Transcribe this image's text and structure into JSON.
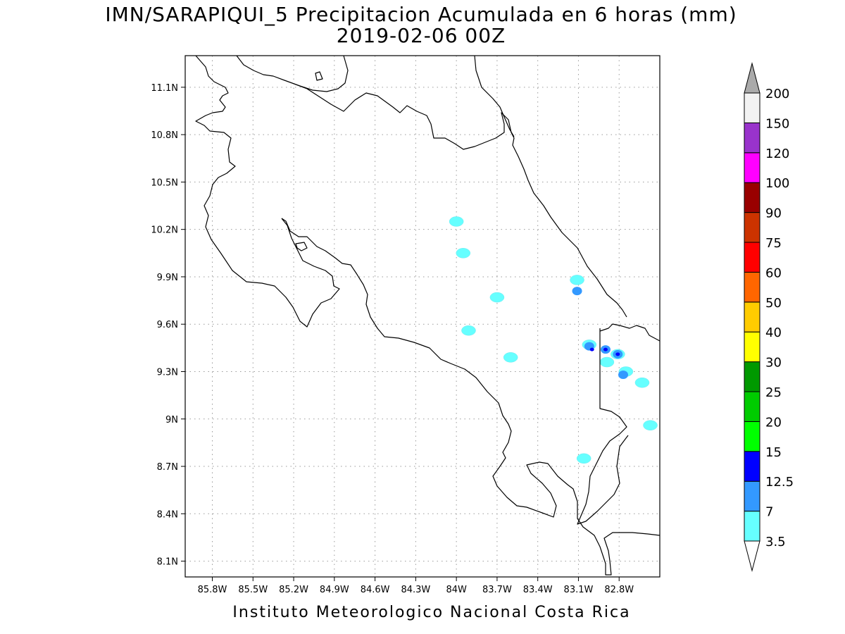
{
  "title": {
    "line1": "IMN/SARAPIQUI_5 Precipitacion Acumulada en 6 horas (mm)",
    "line2": "2019-02-06 00Z"
  },
  "footer": "Instituto Meteorologico Nacional Costa Rica",
  "map": {
    "lon_range": [
      -86.0,
      -82.5
    ],
    "lat_range": [
      8.0,
      11.3
    ],
    "lon_ticks": [
      {
        "value": -85.8,
        "label": "85.8W"
      },
      {
        "value": -85.5,
        "label": "85.5W"
      },
      {
        "value": -85.2,
        "label": "85.2W"
      },
      {
        "value": -84.9,
        "label": "84.9W"
      },
      {
        "value": -84.6,
        "label": "84.6W"
      },
      {
        "value": -84.3,
        "label": "84.3W"
      },
      {
        "value": -84.0,
        "label": "84W"
      },
      {
        "value": -83.7,
        "label": "83.7W"
      },
      {
        "value": -83.4,
        "label": "83.4W"
      },
      {
        "value": -83.1,
        "label": "83.1W"
      },
      {
        "value": -82.8,
        "label": "82.8W"
      }
    ],
    "lat_ticks": [
      {
        "value": 11.1,
        "label": "11.1N"
      },
      {
        "value": 10.8,
        "label": "10.8N"
      },
      {
        "value": 10.5,
        "label": "10.5N"
      },
      {
        "value": 10.2,
        "label": "10.2N"
      },
      {
        "value": 9.9,
        "label": "9.9N"
      },
      {
        "value": 9.6,
        "label": "9.6N"
      },
      {
        "value": 9.3,
        "label": "9.3N"
      },
      {
        "value": 9.0,
        "label": "9N"
      },
      {
        "value": 8.7,
        "label": "8.7N"
      },
      {
        "value": 8.4,
        "label": "8.4N"
      },
      {
        "value": 8.1,
        "label": "8.1N"
      }
    ],
    "grid": true
  },
  "precip_cells": [
    {
      "lon": -84.0,
      "lat": 10.25,
      "level": 3.5
    },
    {
      "lon": -83.95,
      "lat": 10.05,
      "level": 3.5
    },
    {
      "lon": -83.7,
      "lat": 9.77,
      "level": 3.5
    },
    {
      "lon": -83.91,
      "lat": 9.56,
      "level": 3.5
    },
    {
      "lon": -83.11,
      "lat": 9.88,
      "level": 3.5
    },
    {
      "lon": -83.11,
      "lat": 9.81,
      "level": 7
    },
    {
      "lon": -83.02,
      "lat": 9.47,
      "level": 3.5
    },
    {
      "lon": -83.02,
      "lat": 9.46,
      "level": 7
    },
    {
      "lon": -83.0,
      "lat": 9.44,
      "level": 12.5
    },
    {
      "lon": -82.9,
      "lat": 9.44,
      "level": 7
    },
    {
      "lon": -82.9,
      "lat": 9.44,
      "level": 12.5
    },
    {
      "lon": -82.81,
      "lat": 9.41,
      "level": 3.5
    },
    {
      "lon": -82.81,
      "lat": 9.41,
      "level": 7
    },
    {
      "lon": -82.81,
      "lat": 9.41,
      "level": 12.5
    },
    {
      "lon": -82.89,
      "lat": 9.36,
      "level": 3.5
    },
    {
      "lon": -82.75,
      "lat": 9.3,
      "level": 3.5
    },
    {
      "lon": -82.77,
      "lat": 9.28,
      "level": 7
    },
    {
      "lon": -82.63,
      "lat": 9.23,
      "level": 3.5
    },
    {
      "lon": -82.57,
      "lat": 8.96,
      "level": 3.5
    },
    {
      "lon": -83.06,
      "lat": 8.75,
      "level": 3.5
    },
    {
      "lon": -83.6,
      "lat": 9.39,
      "level": 3.5
    }
  ],
  "colorbar": {
    "levels": [
      {
        "label": "3.5",
        "color": "#66ffff"
      },
      {
        "label": "7",
        "color": "#3399ff"
      },
      {
        "label": "12.5",
        "color": "#0000ff"
      },
      {
        "label": "15",
        "color": "#00ff00"
      },
      {
        "label": "20",
        "color": "#00cc00"
      },
      {
        "label": "25",
        "color": "#009900"
      },
      {
        "label": "30",
        "color": "#ffff00"
      },
      {
        "label": "40",
        "color": "#ffcc00"
      },
      {
        "label": "50",
        "color": "#ff6600"
      },
      {
        "label": "60",
        "color": "#ff0000"
      },
      {
        "label": "75",
        "color": "#cc3300"
      },
      {
        "label": "90",
        "color": "#990000"
      },
      {
        "label": "100",
        "color": "#ff00ff"
      },
      {
        "label": "120",
        "color": "#9933cc"
      },
      {
        "label": "150",
        "color": "#f2f2f2"
      },
      {
        "label": "200",
        "color": "#aaaaaa"
      }
    ],
    "below_color": "#ffffff"
  }
}
